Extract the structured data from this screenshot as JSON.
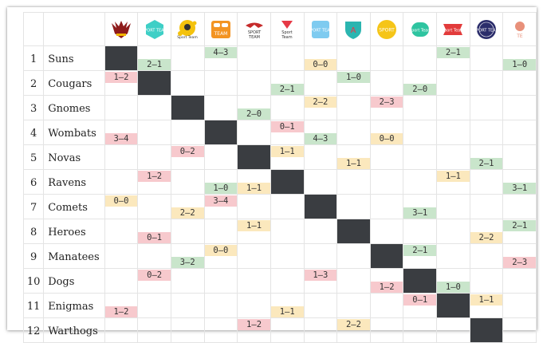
{
  "logos": [
    {
      "icon": "winged-shield-logo-icon",
      "color": "#8e1b1b",
      "text": ""
    },
    {
      "icon": "teal-hexagon-logo-icon",
      "color": "#3ecfc6",
      "text": "SPORT TEAM"
    },
    {
      "icon": "yellow-splash-logo-icon",
      "color": "#f4c20d",
      "text": "Sport Team"
    },
    {
      "icon": "orange-goggles-logo-icon",
      "color": "#f39423",
      "text": "TEAM"
    },
    {
      "icon": "red-eagle-logo-icon",
      "color": "#c62b2b",
      "text": "SPORT TEAM"
    },
    {
      "icon": "red-triangle-logo-icon",
      "color": "#e63946",
      "text": "Sport Team"
    },
    {
      "icon": "lightblue-square-logo-icon",
      "color": "#7ecbf0",
      "text": "SPORT TEAM"
    },
    {
      "icon": "teal-shield-logo-icon",
      "color": "#2bb5b0",
      "text": "A"
    },
    {
      "icon": "yellow-circle-logo-icon",
      "color": "#f5c518",
      "text": "SPORT"
    },
    {
      "icon": "green-rounded-logo-icon",
      "color": "#2ec4a0",
      "text": "Sport Team"
    },
    {
      "icon": "red-ribbon-logo-icon",
      "color": "#e23b3b",
      "text": "Sport Team"
    },
    {
      "icon": "navy-circle-logo-icon",
      "color": "#2b2d6b",
      "text": "SPORT TEAM"
    },
    {
      "icon": "coral-crest-logo-icon",
      "color": "#e8907a",
      "text": "TE"
    }
  ],
  "teams": [
    {
      "rank": "1",
      "name": "Suns",
      "cells": [
        {
          "t": "self"
        },
        {
          "b": "2–1",
          "c": "w"
        },
        {},
        {
          "t": "4–3",
          "c": "w"
        },
        {},
        {},
        {
          "b": "0–0",
          "c": "d"
        },
        {},
        {},
        {},
        {
          "t": "2–1",
          "c": "w"
        },
        {},
        {
          "b": "1–0",
          "c": "w"
        }
      ]
    },
    {
      "rank": "2",
      "name": "Cougars",
      "cells": [
        {
          "t": "1–2",
          "c": "l"
        },
        {
          "t": "self"
        },
        {},
        {},
        {},
        {
          "b": "2–1",
          "c": "w"
        },
        {},
        {
          "t": "1–0",
          "c": "w"
        },
        {},
        {
          "b": "2–0",
          "c": "w"
        },
        {},
        {},
        {}
      ]
    },
    {
      "rank": "3",
      "name": "Gnomes",
      "cells": [
        {},
        {},
        {
          "t": "self"
        },
        {},
        {
          "b": "2–0",
          "c": "w"
        },
        {},
        {
          "t": "2–2",
          "c": "d"
        },
        {},
        {
          "t": "2–3",
          "c": "l"
        },
        {},
        {},
        {},
        {}
      ]
    },
    {
      "rank": "4",
      "name": "Wombats",
      "cells": [
        {
          "b": "3–4",
          "c": "l"
        },
        {},
        {},
        {
          "t": "self"
        },
        {},
        {
          "t": "0–1",
          "c": "l"
        },
        {
          "b": "4–3",
          "c": "w"
        },
        {},
        {
          "b": "0–0",
          "c": "d"
        },
        {},
        {},
        {},
        {}
      ]
    },
    {
      "rank": "5",
      "name": "Novas",
      "cells": [
        {},
        {},
        {
          "t": "0–2",
          "c": "l"
        },
        {},
        {
          "t": "self"
        },
        {
          "t": "1–1",
          "c": "d"
        },
        {},
        {
          "b": "1–1",
          "c": "d"
        },
        {},
        {},
        {},
        {
          "b": "2–1",
          "c": "w"
        },
        {}
      ]
    },
    {
      "rank": "6",
      "name": "Ravens",
      "cells": [
        {},
        {
          "t": "1–2",
          "c": "l"
        },
        {},
        {
          "b": "1–0",
          "c": "w"
        },
        {
          "b": "1–1",
          "c": "d"
        },
        {
          "t": "self"
        },
        {},
        {},
        {},
        {},
        {
          "t": "1–1",
          "c": "d"
        },
        {},
        {
          "b": "3–1",
          "c": "w"
        }
      ]
    },
    {
      "rank": "7",
      "name": "Comets",
      "cells": [
        {
          "t": "0–0",
          "c": "d"
        },
        {},
        {
          "b": "2–2",
          "c": "d"
        },
        {
          "t": "3–4",
          "c": "l"
        },
        {},
        {},
        {
          "t": "self"
        },
        {},
        {},
        {
          "b": "3–1",
          "c": "w"
        },
        {},
        {},
        {}
      ]
    },
    {
      "rank": "8",
      "name": "Heroes",
      "cells": [
        {},
        {
          "b": "0–1",
          "c": "l"
        },
        {},
        {},
        {
          "t": "1–1",
          "c": "d"
        },
        {},
        {},
        {
          "t": "self"
        },
        {},
        {},
        {},
        {
          "b": "2–2",
          "c": "d"
        },
        {
          "t": "2–1",
          "c": "w"
        }
      ]
    },
    {
      "rank": "9",
      "name": "Manatees",
      "cells": [
        {},
        {},
        {
          "b": "3–2",
          "c": "w"
        },
        {
          "t": "0–0",
          "c": "d"
        },
        {},
        {},
        {},
        {},
        {
          "t": "self"
        },
        {
          "t": "2–1",
          "c": "w"
        },
        {},
        {},
        {
          "b": "2–3",
          "c": "l"
        }
      ]
    },
    {
      "rank": "10",
      "name": "Dogs",
      "cells": [
        {},
        {
          "t": "0–2",
          "c": "l"
        },
        {},
        {},
        {},
        {},
        {
          "t": "1–3",
          "c": "l"
        },
        {},
        {
          "b": "1–2",
          "c": "l"
        },
        {
          "t": "self"
        },
        {
          "b": "1–0",
          "c": "w"
        },
        {},
        {}
      ]
    },
    {
      "rank": "11",
      "name": "Enigmas",
      "cells": [
        {
          "b": "1–2",
          "c": "l"
        },
        {},
        {},
        {},
        {},
        {
          "b": "1–1",
          "c": "d"
        },
        {},
        {},
        {},
        {
          "t": "0–1",
          "c": "l"
        },
        {
          "t": "self"
        },
        {
          "t": "1–1",
          "c": "d"
        },
        {}
      ]
    },
    {
      "rank": "12",
      "name": "Warthogs",
      "cells": [
        {},
        {},
        {},
        {},
        {
          "t": "1–2",
          "c": "l"
        },
        {},
        {},
        {
          "t": "2–2",
          "c": "d"
        },
        {},
        {},
        {},
        {
          "t": "self"
        },
        {}
      ]
    }
  ]
}
